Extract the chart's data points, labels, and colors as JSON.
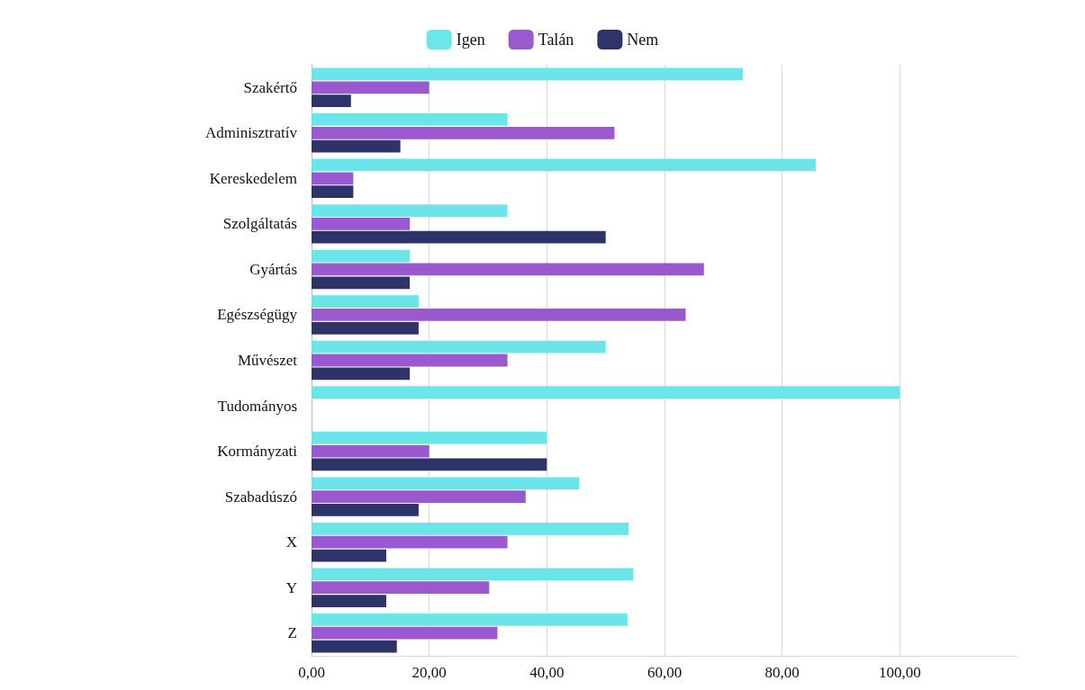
{
  "chart_data": {
    "type": "bar",
    "orientation": "horizontal",
    "categories": [
      "Szakértő",
      "Adminisztratív",
      "Kereskedelem",
      "Szolgáltatás",
      "Gyártás",
      "Egészségügy",
      "Művészet",
      "Tudományos",
      "Kormányzati",
      "Szabadúszó",
      "X",
      "Y",
      "Z"
    ],
    "series": [
      {
        "name": "Igen",
        "color": "#6ce5e8",
        "values": [
          73.3,
          33.3,
          85.7,
          33.3,
          16.7,
          18.2,
          50,
          100,
          40,
          45.5,
          53.9,
          54.7,
          53.7
        ]
      },
      {
        "name": "Talán",
        "color": "#9b59d0",
        "values": [
          20,
          51.5,
          7.1,
          16.7,
          66.7,
          63.6,
          33.3,
          0,
          20,
          36.4,
          33.3,
          30.2,
          31.6
        ]
      },
      {
        "name": "Nem",
        "color": "#2e3368",
        "values": [
          6.7,
          15.1,
          7.1,
          50,
          16.7,
          18.2,
          16.7,
          0,
          40,
          18.2,
          12.7,
          12.7,
          14.5
        ]
      }
    ],
    "xlim": [
      0,
      120
    ],
    "xticks": [
      {
        "value": 0,
        "label": "0,00"
      },
      {
        "value": 20,
        "label": "20,00"
      },
      {
        "value": 40,
        "label": "40,00"
      },
      {
        "value": 60,
        "label": "60,00"
      },
      {
        "value": 80,
        "label": "80,00"
      },
      {
        "value": 100,
        "label": "100,00"
      }
    ],
    "grid": "x",
    "legend": "top"
  }
}
